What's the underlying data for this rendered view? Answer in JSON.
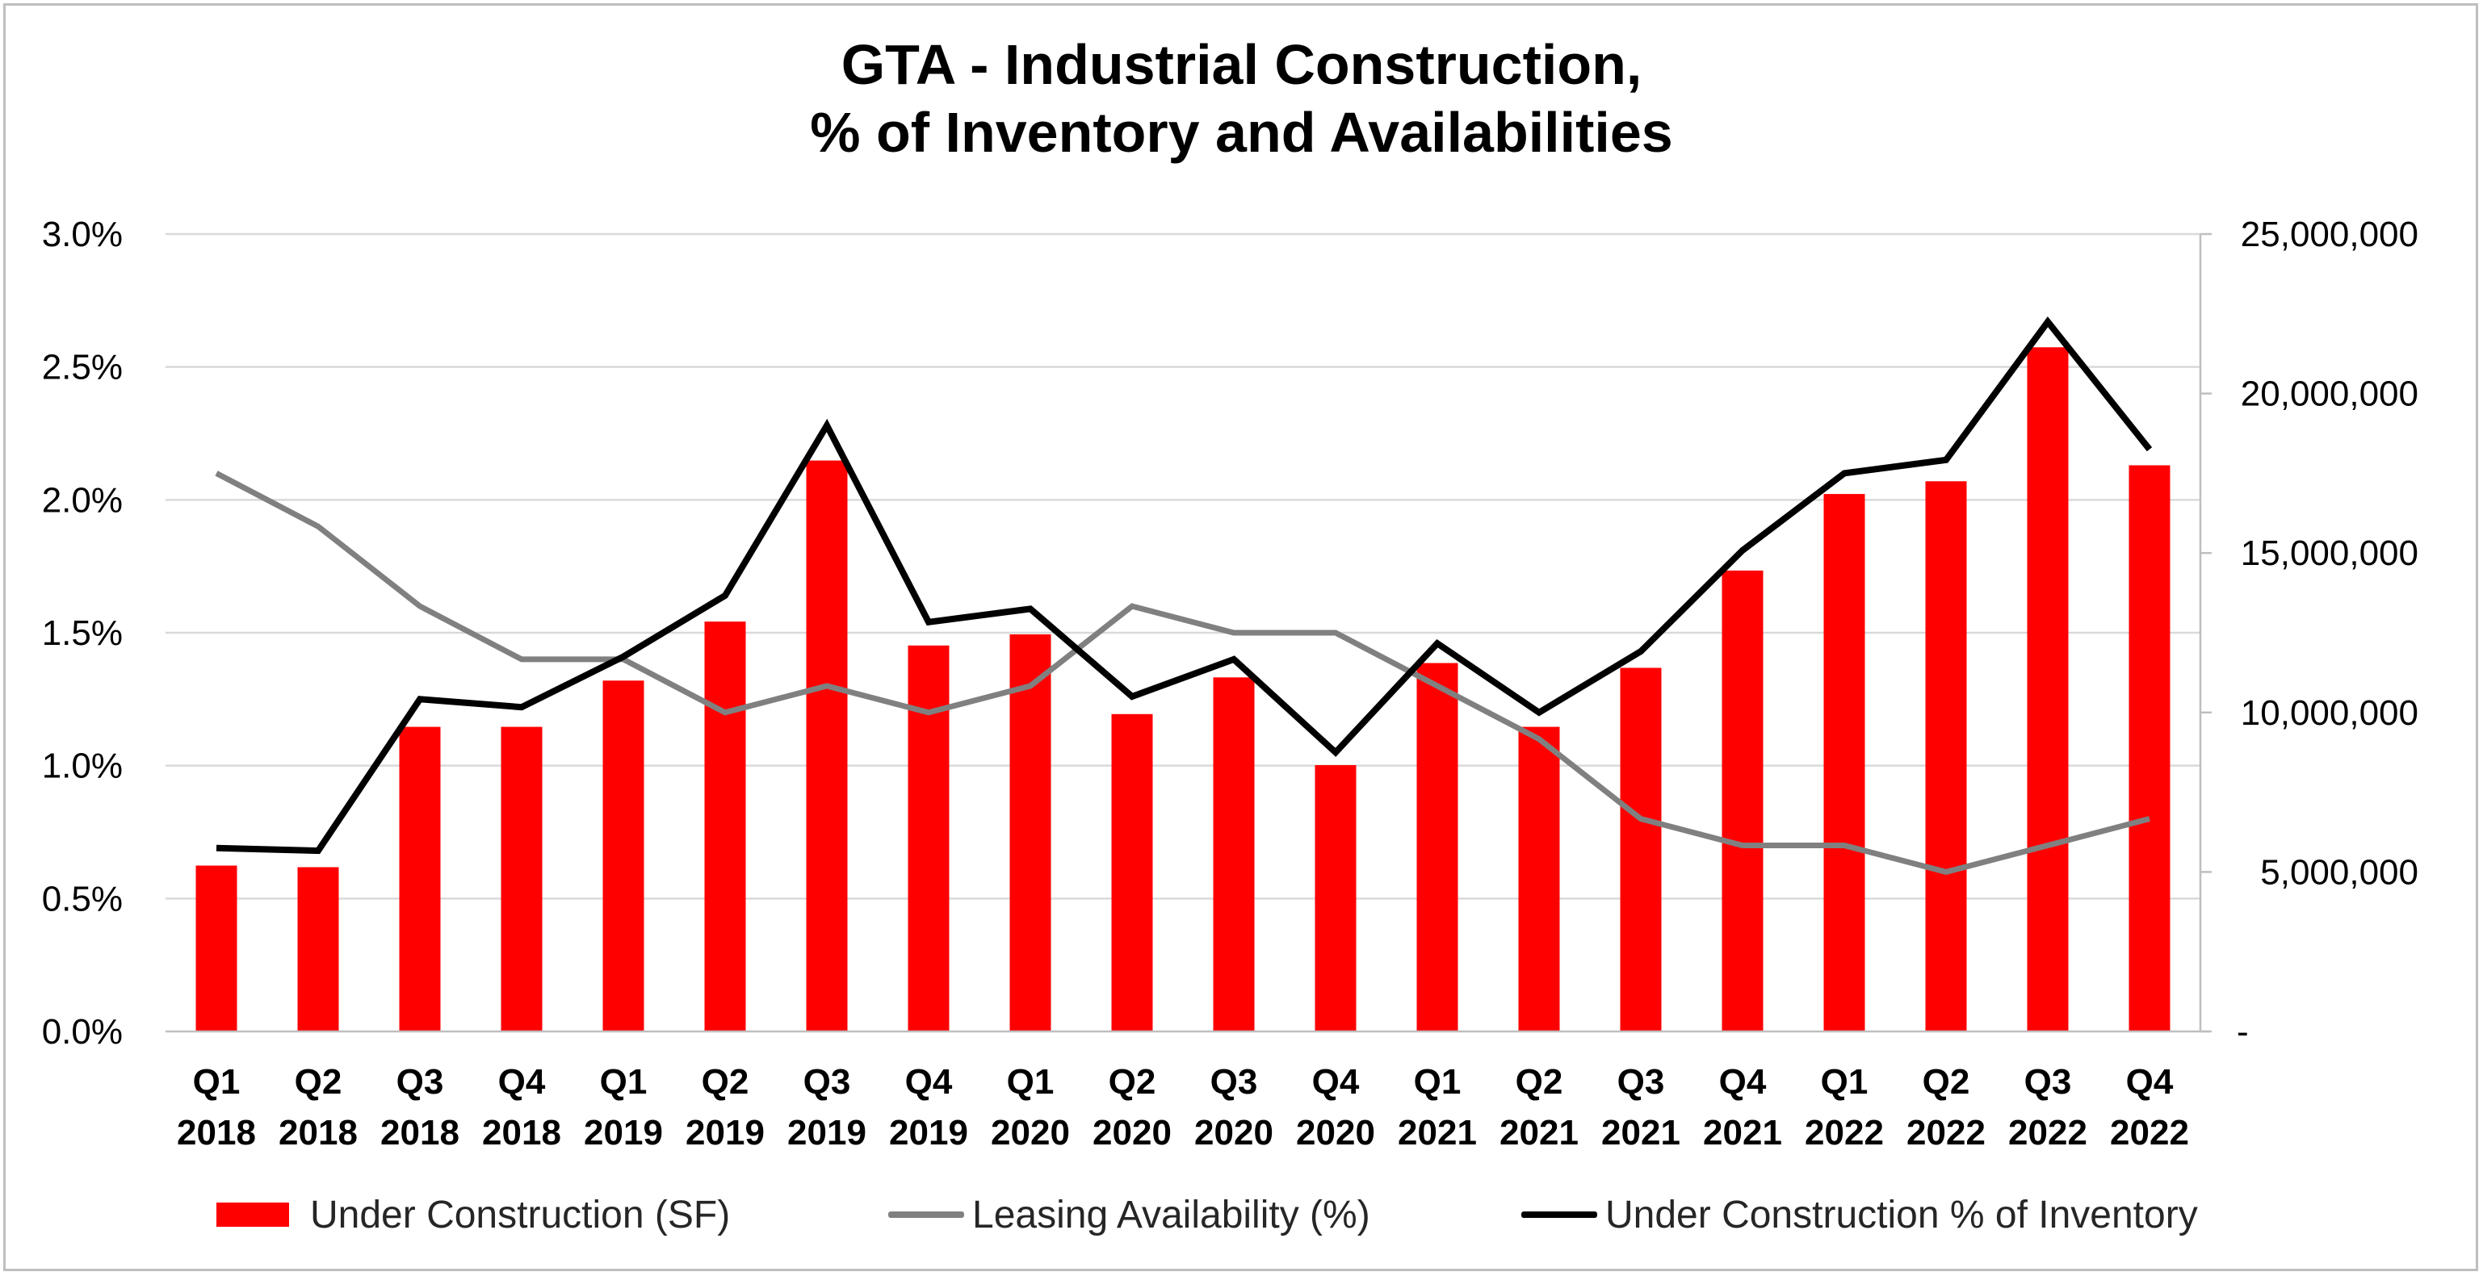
{
  "chart_data": {
    "type": "bar",
    "title_lines": [
      "GTA - Industrial Construction,",
      "% of Inventory and Availabilities"
    ],
    "categories": [
      [
        "Q1",
        "2018"
      ],
      [
        "Q2",
        "2018"
      ],
      [
        "Q3",
        "2018"
      ],
      [
        "Q4",
        "2018"
      ],
      [
        "Q1",
        "2019"
      ],
      [
        "Q2",
        "2019"
      ],
      [
        "Q3",
        "2019"
      ],
      [
        "Q4",
        "2019"
      ],
      [
        "Q1",
        "2020"
      ],
      [
        "Q2",
        "2020"
      ],
      [
        "Q3",
        "2020"
      ],
      [
        "Q4",
        "2020"
      ],
      [
        "Q1",
        "2021"
      ],
      [
        "Q2",
        "2021"
      ],
      [
        "Q3",
        "2021"
      ],
      [
        "Q4",
        "2021"
      ],
      [
        "Q1",
        "2022"
      ],
      [
        "Q2",
        "2022"
      ],
      [
        "Q3",
        "2022"
      ],
      [
        "Q4",
        "2022"
      ]
    ],
    "y_left": {
      "ylim": [
        0,
        0.03
      ],
      "ticks": [
        0,
        0.005,
        0.01,
        0.015,
        0.02,
        0.025,
        0.03
      ],
      "tick_labels": [
        "0.0%",
        "0.5%",
        "1.0%",
        "1.5%",
        "2.0%",
        "2.5%",
        "3.0%"
      ]
    },
    "y_right": {
      "ylim": [
        0,
        25000000
      ],
      "ticks": [
        0,
        5000000,
        10000000,
        15000000,
        20000000,
        25000000
      ],
      "tick_labels": [
        "-",
        "5,000,000",
        "10,000,000",
        "15,000,000",
        "20,000,000",
        "25,000,000"
      ]
    },
    "grid": true,
    "legend_position": "bottom",
    "series": [
      {
        "name": "Under Construction (SF)",
        "kind": "bar",
        "axis": "right",
        "color": "#ff0000",
        "values": [
          5200000,
          5150000,
          9550000,
          9550000,
          11000000,
          12850000,
          17900000,
          12100000,
          12450000,
          9950000,
          11100000,
          8350000,
          11550000,
          9550000,
          11400000,
          14450000,
          16850000,
          17250000,
          21450000,
          17750000
        ]
      },
      {
        "name": "Leasing Availability (%)",
        "kind": "line",
        "axis": "left",
        "color": "#808080",
        "values": [
          0.021,
          0.019,
          0.016,
          0.014,
          0.014,
          0.012,
          0.013,
          0.012,
          0.013,
          0.016,
          0.015,
          0.015,
          0.013,
          0.011,
          0.008,
          0.007,
          0.007,
          0.006,
          0.007,
          0.008
        ]
      },
      {
        "name": "Under Construction % of Inventory",
        "kind": "line",
        "axis": "left",
        "color": "#000000",
        "values": [
          0.0069,
          0.0068,
          0.0125,
          0.0122,
          0.0141,
          0.0164,
          0.0228,
          0.0154,
          0.0159,
          0.0126,
          0.014,
          0.0105,
          0.0146,
          0.012,
          0.0143,
          0.0181,
          0.021,
          0.0215,
          0.0267,
          0.0219
        ]
      }
    ]
  }
}
